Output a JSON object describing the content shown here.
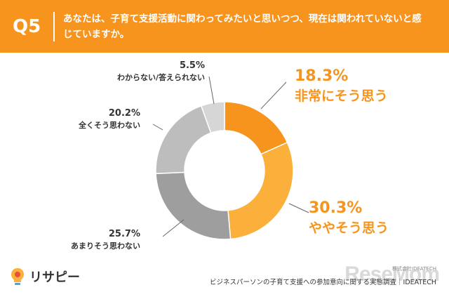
{
  "header": {
    "question_label": "Q5",
    "question_text": "あなたは、子育て支援活動に関わってみたいと思いつつ、現在は関われていないと感じていますか。"
  },
  "chart_data": {
    "type": "pie",
    "title": "",
    "start_angle_deg": 0,
    "direction": "clockwise",
    "slices": [
      {
        "label": "非常にそう思う",
        "value": 18.3,
        "value_label": "18.3%",
        "color": "#f7941d"
      },
      {
        "label": "ややそう思う",
        "value": 30.3,
        "value_label": "30.3%",
        "color": "#fbb03b"
      },
      {
        "label": "あまりそう思わない",
        "value": 25.7,
        "value_label": "25.7%",
        "color": "#9e9e9e"
      },
      {
        "label": "全くそう思わない",
        "value": 20.2,
        "value_label": "20.2%",
        "color": "#bdbdbd"
      },
      {
        "label": "わからない/答えられない",
        "value": 5.5,
        "value_label": "5.5%",
        "color": "#d6d6d6"
      }
    ],
    "donut": true
  },
  "footer": {
    "logo_text": "リサピー",
    "note": "ビジネスパーソンの子育て支援への参加意向に関する実態調査｜IDEATECH",
    "copyright": "株式会社IDEATECH",
    "watermark": "ReseMom"
  },
  "colors": {
    "header_bg": "#f7941d",
    "accent_text": "#f7941d",
    "dark_text": "#333333"
  },
  "icons": {
    "logo": "lightbulb-logo-icon"
  }
}
